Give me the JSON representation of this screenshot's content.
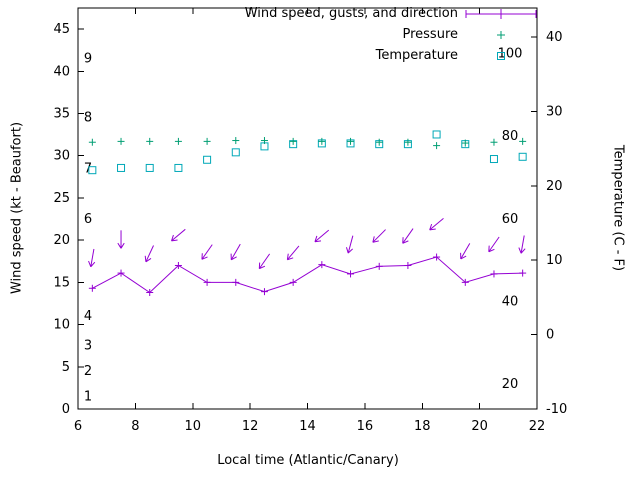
{
  "chart_data": {
    "type": "line",
    "title": "",
    "xlabel": "Local time (Atlantic/Canary)",
    "ylabel_left": "Wind speed (kt - Beaufort)",
    "ylabel_right": "Temperature (C - F)",
    "x_range": [
      6,
      22
    ],
    "x_ticks": [
      6,
      8,
      10,
      12,
      14,
      16,
      18,
      20,
      22
    ],
    "y_left": {
      "range": [
        0,
        47.5
      ],
      "ticks": [
        0,
        5,
        10,
        15,
        20,
        25,
        30,
        35,
        40,
        45
      ]
    },
    "y_right": {
      "range": [
        -10,
        43.9
      ],
      "ticks": [
        -10,
        0,
        10,
        20,
        30,
        40
      ]
    },
    "beaufort_scale_labels": [
      {
        "text": "1",
        "kt": 1.5
      },
      {
        "text": "2",
        "kt": 4.5
      },
      {
        "text": "3",
        "kt": 7.5
      },
      {
        "text": "4",
        "kt": 11.0
      },
      {
        "text": "6",
        "kt": 22.5
      },
      {
        "text": "7",
        "kt": 28.5
      },
      {
        "text": "8",
        "kt": 34.5
      },
      {
        "text": "9",
        "kt": 41.5
      }
    ],
    "fahrenheit_scale_labels": [
      {
        "text": "20",
        "f": 20
      },
      {
        "text": "40",
        "f": 40
      },
      {
        "text": "60",
        "f": 60
      },
      {
        "text": "80",
        "f": 80
      },
      {
        "text": "100",
        "f": 100
      }
    ],
    "x_hours": [
      6.5,
      7.5,
      8.5,
      9.5,
      10.5,
      11.5,
      12.5,
      13.5,
      14.5,
      15.5,
      16.5,
      17.5,
      18.5,
      19.5,
      20.5,
      21.5
    ],
    "series": {
      "wind_speed_kt": [
        14.3,
        16.1,
        13.8,
        17.0,
        15.0,
        15.0,
        13.9,
        15.0,
        17.1,
        16.0,
        16.9,
        17.0,
        18.0,
        15.0,
        16.0,
        16.1
      ],
      "wind_gust_kt": [
        17.9,
        20.1,
        18.4,
        20.6,
        18.6,
        18.6,
        17.5,
        18.5,
        20.5,
        19.5,
        20.5,
        20.5,
        21.9,
        18.7,
        19.5,
        19.5
      ],
      "wind_dir_deg": [
        190,
        180,
        205,
        230,
        215,
        210,
        215,
        220,
        230,
        195,
        225,
        215,
        230,
        210,
        215,
        190
      ],
      "pressure_plotted_on_left_axis": [
        31.6,
        31.7,
        31.7,
        31.7,
        31.7,
        31.8,
        31.8,
        31.7,
        31.7,
        31.7,
        31.6,
        31.6,
        31.2,
        31.5,
        31.6,
        31.7
      ],
      "temperature_c": [
        22.1,
        22.4,
        22.4,
        22.4,
        23.5,
        24.5,
        25.3,
        25.6,
        25.7,
        25.7,
        25.6,
        25.6,
        26.9,
        25.6,
        23.6,
        23.9
      ]
    },
    "legend": [
      {
        "label": "Wind speed, gusts, and direction",
        "marker": "errorbar-line-plus",
        "color": "#9400d3"
      },
      {
        "label": "Pressure",
        "marker": "plus",
        "color": "#009e73"
      },
      {
        "label": "Temperature",
        "marker": "square-open",
        "color": "#00a8b8"
      }
    ],
    "layout": {
      "grid": false,
      "legend_position": "top-right-inside",
      "background": "#ffffff",
      "axis_color": "#000000"
    }
  }
}
